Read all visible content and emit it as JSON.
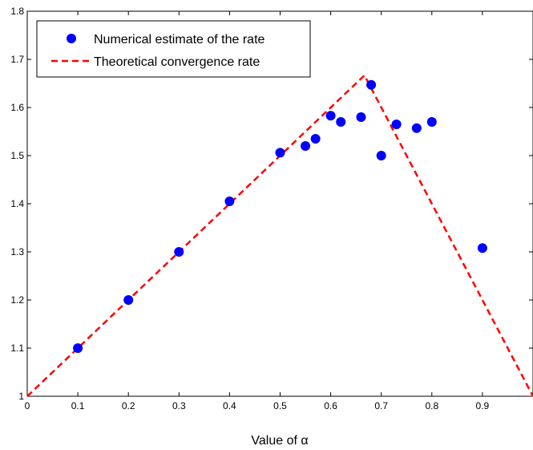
{
  "chart_data": {
    "type": "scatter",
    "title": "",
    "xlabel": "Value of α",
    "ylabel": "",
    "xlim": [
      0,
      1
    ],
    "ylim": [
      1,
      1.8
    ],
    "xticks": [
      0,
      0.1,
      0.2,
      0.3,
      0.4,
      0.5,
      0.6,
      0.7,
      0.8,
      0.9
    ],
    "yticks": [
      1,
      1.1,
      1.2,
      1.3,
      1.4,
      1.5,
      1.6,
      1.7,
      1.8
    ],
    "grid": false,
    "legend_position": "top-left",
    "series": [
      {
        "name": "Numerical estimate of the rate",
        "kind": "markers",
        "color": "#0000ff",
        "points": [
          [
            0.1,
            1.1
          ],
          [
            0.2,
            1.2
          ],
          [
            0.3,
            1.3
          ],
          [
            0.4,
            1.405
          ],
          [
            0.5,
            1.506
          ],
          [
            0.55,
            1.52
          ],
          [
            0.57,
            1.535
          ],
          [
            0.6,
            1.583
          ],
          [
            0.62,
            1.57
          ],
          [
            0.66,
            1.58
          ],
          [
            0.68,
            1.647
          ],
          [
            0.7,
            1.5
          ],
          [
            0.73,
            1.565
          ],
          [
            0.77,
            1.557
          ],
          [
            0.8,
            1.57
          ],
          [
            0.9,
            1.308
          ]
        ]
      },
      {
        "name": "Theoretical convergence rate",
        "kind": "dashed-line",
        "color": "#ff0000",
        "points": [
          [
            0,
            1.0
          ],
          [
            0.6667,
            1.6667
          ],
          [
            1.0,
            1.0
          ]
        ]
      }
    ]
  }
}
